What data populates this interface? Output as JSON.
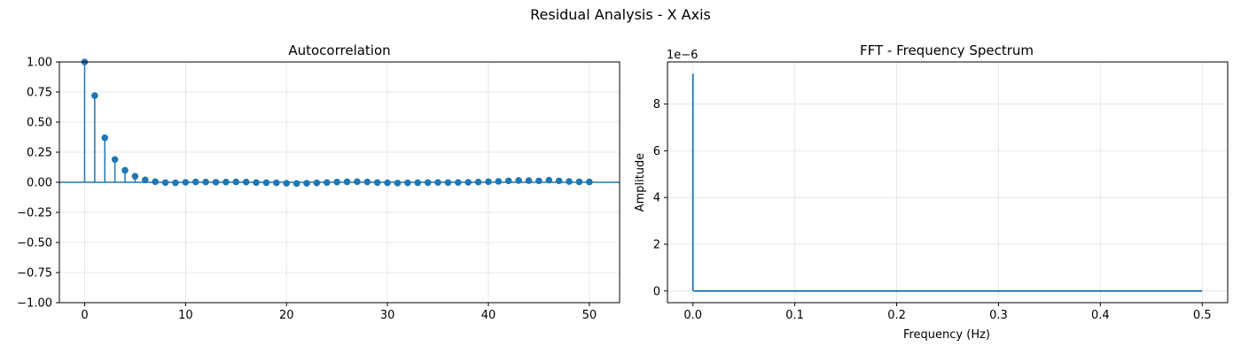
{
  "figure": {
    "suptitle": "Residual Analysis - X Axis"
  },
  "colors": {
    "series": "#1f77b4",
    "grid": "#b0b0b0",
    "axes": "#000000"
  },
  "chart_data": [
    {
      "type": "stem",
      "title": "Autocorrelation",
      "xlabel": "",
      "ylabel": "",
      "xlim": [
        -2.5,
        53
      ],
      "ylim": [
        -1.0,
        1.0
      ],
      "xticks": [
        "0",
        "10",
        "20",
        "30",
        "40",
        "50"
      ],
      "yticks": [
        "−1.00",
        "−0.75",
        "−0.50",
        "−0.25",
        "0.00",
        "0.25",
        "0.50",
        "0.75",
        "1.00"
      ],
      "grid": true,
      "baseline": 0,
      "lags": [
        0,
        1,
        2,
        3,
        4,
        5,
        6,
        7,
        8,
        9,
        10,
        11,
        12,
        13,
        14,
        15,
        16,
        17,
        18,
        19,
        20,
        21,
        22,
        23,
        24,
        25,
        26,
        27,
        28,
        29,
        30,
        31,
        32,
        33,
        34,
        35,
        36,
        37,
        38,
        39,
        40,
        41,
        42,
        43,
        44,
        45,
        46,
        47,
        48,
        49,
        50
      ],
      "values": [
        1.0,
        0.72,
        0.37,
        0.19,
        0.1,
        0.05,
        0.02,
        0.005,
        -0.002,
        -0.004,
        0.0,
        0.003,
        0.002,
        0.001,
        0.002,
        0.003,
        0.002,
        -0.002,
        -0.003,
        -0.004,
        -0.008,
        -0.01,
        -0.008,
        -0.005,
        -0.002,
        0.002,
        0.004,
        0.005,
        0.003,
        -0.002,
        -0.004,
        -0.006,
        -0.004,
        -0.003,
        -0.002,
        -0.001,
        -0.002,
        -0.001,
        0.0,
        0.002,
        0.005,
        0.008,
        0.012,
        0.015,
        0.014,
        0.012,
        0.018,
        0.012,
        0.007,
        0.004,
        0.003
      ]
    },
    {
      "type": "line",
      "title": "FFT - Frequency Spectrum",
      "xlabel": "Frequency (Hz)",
      "ylabel": "Amplitude",
      "offset_text": "1e−6",
      "xlim": [
        -0.025,
        0.525
      ],
      "ylim": [
        -0.5,
        9.8
      ],
      "xticks": [
        "0.0",
        "0.1",
        "0.2",
        "0.3",
        "0.4",
        "0.5"
      ],
      "yticks": [
        "0",
        "2",
        "4",
        "6",
        "8"
      ],
      "grid": true,
      "x": [
        0.0,
        0.0,
        0.001,
        0.01,
        0.1,
        0.2,
        0.3,
        0.4,
        0.5
      ],
      "y": [
        9.3,
        0.03,
        0.0,
        0.0,
        0.0,
        0.0,
        0.0,
        0.0,
        0.0
      ]
    }
  ]
}
